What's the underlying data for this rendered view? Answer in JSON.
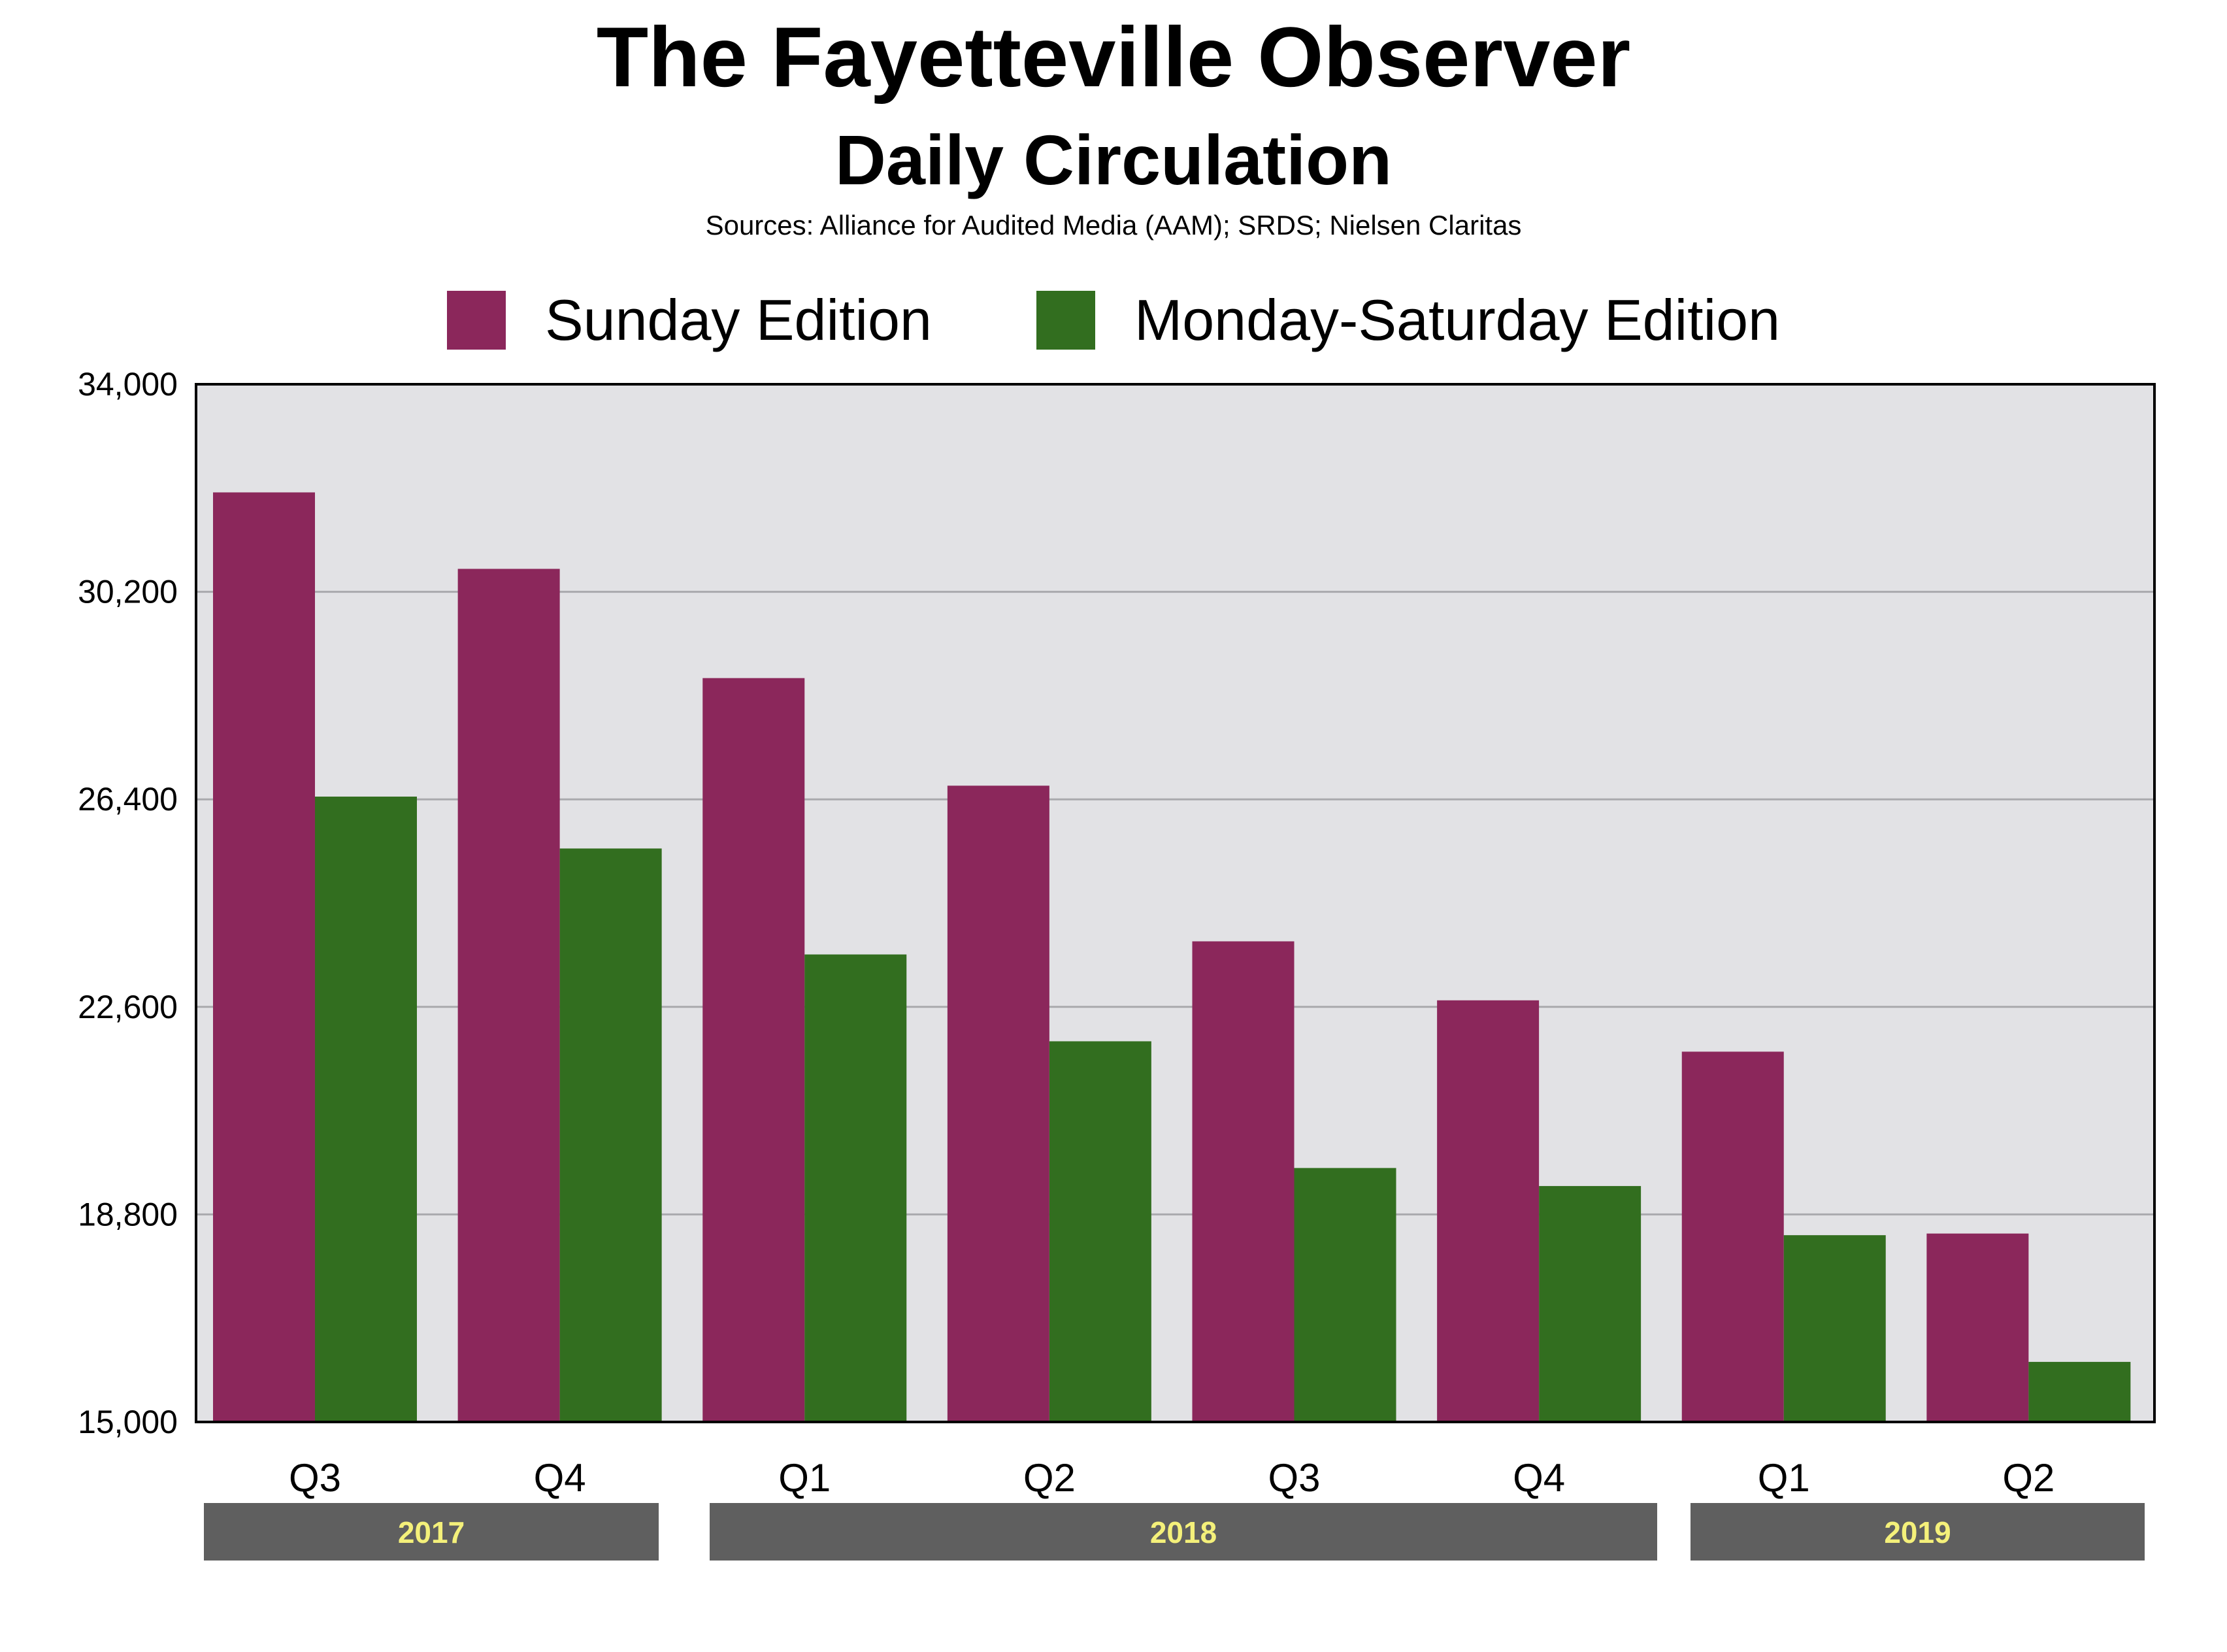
{
  "chart_data": {
    "type": "bar",
    "title": "The Fayetteville Observer",
    "subtitle": "Daily Circulation",
    "source": "Sources: Alliance for Audited Media (AAM); SRDS; Nielsen Claritas",
    "categories": [
      "Q3",
      "Q4",
      "Q1",
      "Q2",
      "Q3",
      "Q4",
      "Q1",
      "Q2"
    ],
    "groups": [
      {
        "label": "2017",
        "start": 0,
        "end": 1
      },
      {
        "label": "2018",
        "start": 2,
        "end": 5
      },
      {
        "label": "2019",
        "start": 6,
        "end": 7
      }
    ],
    "series": [
      {
        "name": "Sunday Edition",
        "color": "#8b275b",
        "values": [
          32020,
          30620,
          28620,
          26650,
          23800,
          22720,
          21780,
          18450
        ]
      },
      {
        "name": "Monday-Saturday Edition",
        "color": "#326e1f",
        "values": [
          26450,
          25500,
          23560,
          21970,
          19650,
          19320,
          18420,
          16100
        ]
      }
    ],
    "ylim": [
      15000,
      34000
    ],
    "yticks": [
      15000,
      18800,
      22600,
      26400,
      30200,
      34000
    ],
    "ytick_labels": [
      "15,000",
      "18,800",
      "22,600",
      "26,400",
      "30,200",
      "34,000"
    ],
    "legend": "top-center",
    "grid": true,
    "plot_background": "#e2e2e5",
    "group_bar_color": "#5f5f5f",
    "group_label_color": "#f4f07a"
  }
}
